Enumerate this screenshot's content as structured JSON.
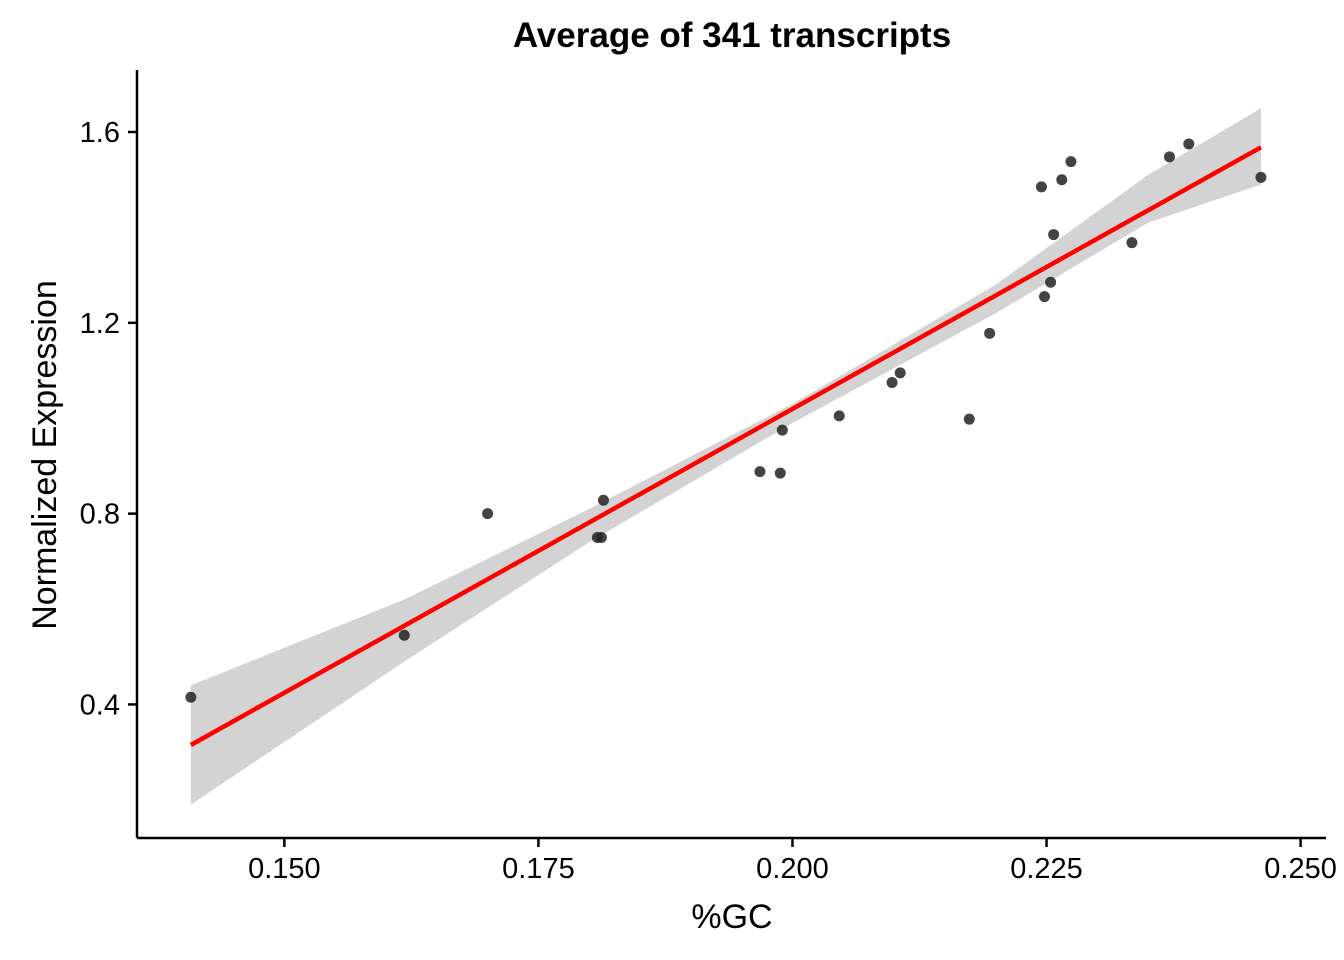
{
  "chart_data": {
    "type": "scatter",
    "title": "Average of 341 transcripts",
    "xlabel": "%GC",
    "ylabel": "Normalized Expression",
    "xlim": [
      0.1355,
      0.2525
    ],
    "ylim": [
      0.12,
      1.73
    ],
    "x_ticks": [
      0.15,
      0.175,
      0.2,
      0.225,
      0.25
    ],
    "x_tick_labels": [
      "0.150",
      "0.175",
      "0.200",
      "0.225",
      "0.250"
    ],
    "y_ticks": [
      0.4,
      0.8,
      1.2,
      1.6
    ],
    "y_tick_labels": [
      "0.4",
      "0.8",
      "1.2",
      "1.6"
    ],
    "grid": false,
    "colors": {
      "points": "#222222",
      "fit_line": "#ff0000",
      "confidence_band": "#d3d3d3"
    },
    "points": [
      {
        "x": 0.1408,
        "y": 0.415
      },
      {
        "x": 0.1618,
        "y": 0.545
      },
      {
        "x": 0.17,
        "y": 0.8
      },
      {
        "x": 0.1808,
        "y": 0.75
      },
      {
        "x": 0.1812,
        "y": 0.75
      },
      {
        "x": 0.1814,
        "y": 0.828
      },
      {
        "x": 0.1968,
        "y": 0.888
      },
      {
        "x": 0.1988,
        "y": 0.885
      },
      {
        "x": 0.199,
        "y": 0.975
      },
      {
        "x": 0.2046,
        "y": 1.005
      },
      {
        "x": 0.2098,
        "y": 1.075
      },
      {
        "x": 0.2106,
        "y": 1.095
      },
      {
        "x": 0.2174,
        "y": 0.998
      },
      {
        "x": 0.2194,
        "y": 1.178
      },
      {
        "x": 0.2245,
        "y": 1.485
      },
      {
        "x": 0.2248,
        "y": 1.255
      },
      {
        "x": 0.2254,
        "y": 1.285
      },
      {
        "x": 0.2257,
        "y": 1.385
      },
      {
        "x": 0.2265,
        "y": 1.5
      },
      {
        "x": 0.2274,
        "y": 1.538
      },
      {
        "x": 0.2334,
        "y": 1.368
      },
      {
        "x": 0.2371,
        "y": 1.548
      },
      {
        "x": 0.239,
        "y": 1.575
      },
      {
        "x": 0.2461,
        "y": 1.505
      }
    ],
    "fit": {
      "x": [
        0.1408,
        0.2461
      ],
      "y": [
        0.315,
        1.568
      ]
    },
    "confidence_band": {
      "x": [
        0.1408,
        0.1618,
        0.18,
        0.2,
        0.22,
        0.235,
        0.2461
      ],
      "lower": [
        0.19,
        0.49,
        0.74,
        0.99,
        1.22,
        1.41,
        1.49
      ],
      "upper": [
        0.44,
        0.62,
        0.81,
        1.03,
        1.28,
        1.51,
        1.65
      ]
    }
  }
}
